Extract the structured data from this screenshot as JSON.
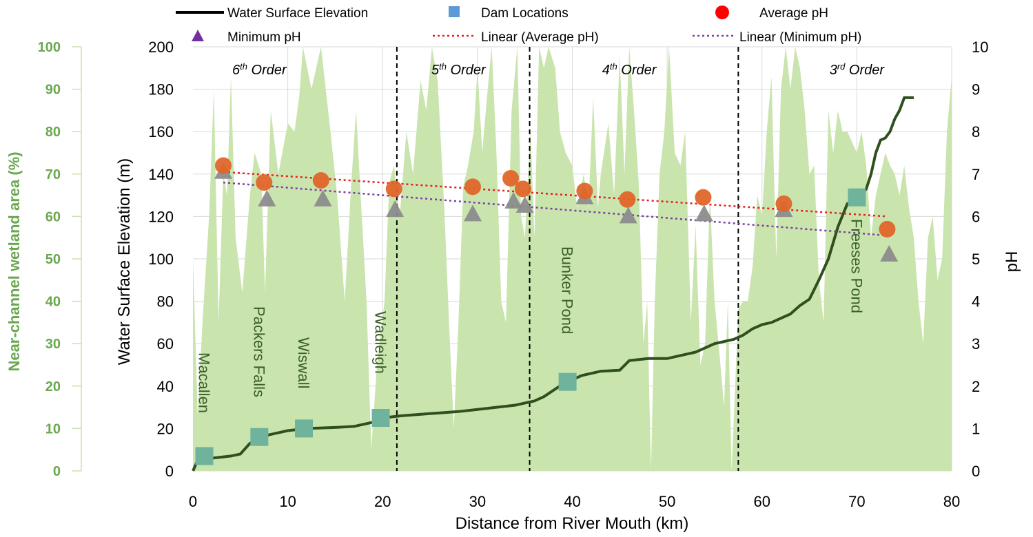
{
  "chart_data": {
    "type": "line",
    "xlabel": "Distance from River Mouth (km)",
    "ylabel_left": "Water Surface Elevation (m)",
    "ylabel_right": "pH",
    "ylabel_wetland": "Near-channel wetland area (%)",
    "xlim": [
      0,
      80
    ],
    "ylim_elevation": [
      0,
      200
    ],
    "ylim_ph": [
      0,
      10
    ],
    "ylim_wetland": [
      0,
      100
    ],
    "x_ticks": [
      "0",
      "10",
      "20",
      "30",
      "40",
      "50",
      "60",
      "70",
      "80"
    ],
    "elev_ticks": [
      "0",
      "20",
      "40",
      "60",
      "80",
      "100",
      "120",
      "140",
      "160",
      "180",
      "200"
    ],
    "ph_ticks": [
      "0",
      "1",
      "2",
      "3",
      "4",
      "5",
      "6",
      "7",
      "8",
      "9",
      "10"
    ],
    "wetland_ticks": [
      "0",
      "10",
      "20",
      "30",
      "40",
      "50",
      "60",
      "70",
      "80",
      "90",
      "100"
    ],
    "legend": {
      "water_surface": "Water Surface Elevation",
      "dams": "Dam Locations",
      "avg_ph": "Average pH",
      "min_ph": "Minimum pH",
      "lin_avg": "Linear (Average pH)",
      "lin_min": "Linear (Minimum pH)"
    },
    "orders": [
      {
        "base": "6",
        "sup": "th",
        "rest": " Order",
        "x": 7
      },
      {
        "base": "5",
        "sup": "th",
        "rest": " Order",
        "x": 28
      },
      {
        "base": "4",
        "sup": "th",
        "rest": " Order",
        "x": 46
      },
      {
        "base": "3",
        "sup": "rd",
        "rest": " Order",
        "x": 70
      }
    ],
    "order_boundaries_km": [
      21.5,
      35.5,
      57.5
    ],
    "water_surface": [
      [
        0,
        0
      ],
      [
        0.5,
        5
      ],
      [
        2,
        6
      ],
      [
        4,
        7
      ],
      [
        5,
        8
      ],
      [
        6,
        13
      ],
      [
        7,
        15
      ],
      [
        8,
        17
      ],
      [
        9,
        18
      ],
      [
        10,
        19
      ],
      [
        12,
        20
      ],
      [
        15,
        20.5
      ],
      [
        17,
        21
      ],
      [
        19,
        23
      ],
      [
        20,
        25
      ],
      [
        22,
        26
      ],
      [
        25,
        27
      ],
      [
        28,
        28
      ],
      [
        30,
        29
      ],
      [
        32,
        30
      ],
      [
        34,
        31
      ],
      [
        35,
        32
      ],
      [
        36,
        33
      ],
      [
        37,
        35
      ],
      [
        38,
        38
      ],
      [
        39,
        41
      ],
      [
        40,
        43
      ],
      [
        41,
        45
      ],
      [
        42,
        46
      ],
      [
        43,
        47
      ],
      [
        45,
        47.5
      ],
      [
        46,
        52
      ],
      [
        48,
        53
      ],
      [
        50,
        53
      ],
      [
        52,
        55
      ],
      [
        53,
        56
      ],
      [
        55,
        60
      ],
      [
        57,
        62
      ],
      [
        58,
        64
      ],
      [
        59,
        67
      ],
      [
        60,
        69
      ],
      [
        61,
        70
      ],
      [
        62,
        72
      ],
      [
        63,
        74
      ],
      [
        64,
        78
      ],
      [
        65,
        81
      ],
      [
        66,
        90
      ],
      [
        67,
        100
      ],
      [
        68,
        115
      ],
      [
        69,
        126
      ],
      [
        70,
        128
      ],
      [
        71,
        133
      ],
      [
        71.5,
        140
      ],
      [
        72,
        150
      ],
      [
        72.5,
        156
      ],
      [
        73,
        157
      ],
      [
        73.5,
        160
      ],
      [
        74,
        166
      ],
      [
        74.5,
        170
      ],
      [
        75,
        176
      ],
      [
        76,
        176
      ]
    ],
    "dams": [
      {
        "name": "Macallen",
        "x": 1.2,
        "elev": 7
      },
      {
        "name": "Packers Falls",
        "x": 7,
        "elev": 16
      },
      {
        "name": "Wiswall",
        "x": 11.7,
        "elev": 20
      },
      {
        "name": "Wadleigh",
        "x": 19.8,
        "elev": 25
      },
      {
        "name": "Bunker Pond",
        "x": 39.5,
        "elev": 42
      },
      {
        "name": "Freeses Pond",
        "x": 70,
        "elev": 129
      }
    ],
    "avg_ph": [
      [
        3.2,
        7.2
      ],
      [
        7.5,
        6.8
      ],
      [
        13.5,
        6.85
      ],
      [
        21.2,
        6.65
      ],
      [
        29.5,
        6.7
      ],
      [
        33.5,
        6.9
      ],
      [
        34.8,
        6.65
      ],
      [
        41.3,
        6.6
      ],
      [
        45.8,
        6.4
      ],
      [
        53.8,
        6.45
      ],
      [
        62.3,
        6.3
      ],
      [
        73.2,
        5.7
      ]
    ],
    "min_ph": [
      [
        3.2,
        7.05
      ],
      [
        7.8,
        6.4
      ],
      [
        13.7,
        6.4
      ],
      [
        21.3,
        6.15
      ],
      [
        29.5,
        6.05
      ],
      [
        33.8,
        6.35
      ],
      [
        35,
        6.25
      ],
      [
        41.3,
        6.45
      ],
      [
        45.9,
        6.0
      ],
      [
        53.9,
        6.05
      ],
      [
        62.3,
        6.15
      ],
      [
        73.4,
        5.1
      ]
    ],
    "lin_avg": [
      [
        3.2,
        7.05
      ],
      [
        73.2,
        6.0
      ]
    ],
    "lin_min": [
      [
        3.2,
        6.8
      ],
      [
        73.2,
        5.55
      ]
    ],
    "wetland": [
      [
        0,
        50
      ],
      [
        0.5,
        13
      ],
      [
        1,
        35
      ],
      [
        1.7,
        60
      ],
      [
        2.2,
        90
      ],
      [
        2.7,
        35
      ],
      [
        3.2,
        70
      ],
      [
        3.6,
        65
      ],
      [
        4,
        93
      ],
      [
        4.5,
        55
      ],
      [
        5.2,
        42
      ],
      [
        6,
        65
      ],
      [
        6.5,
        75
      ],
      [
        7.2,
        70
      ],
      [
        7.6,
        42
      ],
      [
        8.2,
        85
      ],
      [
        9,
        70
      ],
      [
        10,
        82
      ],
      [
        10.7,
        80
      ],
      [
        11.2,
        88
      ],
      [
        11.6,
        100
      ],
      [
        12.5,
        90
      ],
      [
        13.5,
        100
      ],
      [
        14.5,
        80
      ],
      [
        15.2,
        65
      ],
      [
        16,
        40
      ],
      [
        16.7,
        68
      ],
      [
        17.2,
        85
      ],
      [
        17.8,
        60
      ],
      [
        18.3,
        40
      ],
      [
        18.8,
        5
      ],
      [
        19.4,
        25
      ],
      [
        20.2,
        40
      ],
      [
        20.7,
        68
      ],
      [
        21.2,
        72
      ],
      [
        21.8,
        60
      ],
      [
        22.5,
        80
      ],
      [
        23.2,
        70
      ],
      [
        24,
        92
      ],
      [
        24.6,
        85
      ],
      [
        25.2,
        100
      ],
      [
        25.8,
        92
      ],
      [
        26.5,
        62
      ],
      [
        27,
        35
      ],
      [
        27.5,
        10
      ],
      [
        28,
        35
      ],
      [
        28.5,
        67
      ],
      [
        29,
        72
      ],
      [
        29.6,
        80
      ],
      [
        30,
        95
      ],
      [
        30.5,
        75
      ],
      [
        31,
        88
      ],
      [
        31.5,
        100
      ],
      [
        32,
        75
      ],
      [
        32.5,
        40
      ],
      [
        33,
        35
      ],
      [
        33.6,
        85
      ],
      [
        34.2,
        100
      ],
      [
        34.6,
        60
      ],
      [
        35,
        55
      ],
      [
        35.6,
        80
      ],
      [
        36,
        55
      ],
      [
        36.5,
        100
      ],
      [
        37,
        95
      ],
      [
        37.5,
        100
      ],
      [
        38.2,
        95
      ],
      [
        38.7,
        80
      ],
      [
        39.3,
        75
      ],
      [
        40,
        72
      ],
      [
        40.5,
        62
      ],
      [
        41.2,
        70
      ],
      [
        41.7,
        62
      ],
      [
        42.2,
        88
      ],
      [
        42.7,
        62
      ],
      [
        43,
        70
      ],
      [
        43.8,
        82
      ],
      [
        44.4,
        65
      ],
      [
        45,
        98
      ],
      [
        45.5,
        70
      ],
      [
        46,
        100
      ],
      [
        46.5,
        85
      ],
      [
        47,
        68
      ],
      [
        47.5,
        30
      ],
      [
        47.9,
        40
      ],
      [
        48.3,
        0
      ],
      [
        48.7,
        40
      ],
      [
        49.2,
        70
      ],
      [
        49.7,
        80
      ],
      [
        50.2,
        100
      ],
      [
        50.8,
        75
      ],
      [
        51.4,
        72
      ],
      [
        51.9,
        80
      ],
      [
        52.5,
        35
      ],
      [
        53,
        58
      ],
      [
        53.5,
        25
      ],
      [
        54,
        30
      ],
      [
        54.5,
        65
      ],
      [
        55,
        40
      ],
      [
        55.5,
        28
      ],
      [
        56,
        15
      ],
      [
        56.4,
        40
      ],
      [
        56.8,
        0
      ],
      [
        57.5,
        38
      ],
      [
        58,
        40
      ],
      [
        58.5,
        40
      ],
      [
        59,
        48
      ],
      [
        59.5,
        65
      ],
      [
        60,
        60
      ],
      [
        60.5,
        80
      ],
      [
        61,
        93
      ],
      [
        61.5,
        50
      ],
      [
        62,
        90
      ],
      [
        62.5,
        100
      ],
      [
        63,
        90
      ],
      [
        63.5,
        100
      ],
      [
        64,
        95
      ],
      [
        64.5,
        85
      ],
      [
        65,
        70
      ],
      [
        65.5,
        72
      ],
      [
        66,
        45
      ],
      [
        66.5,
        35
      ],
      [
        67,
        85
      ],
      [
        67.5,
        75
      ],
      [
        68,
        85
      ],
      [
        68.5,
        80
      ],
      [
        69,
        80
      ],
      [
        70,
        75
      ],
      [
        70.5,
        80
      ],
      [
        71,
        72
      ],
      [
        71.5,
        55
      ],
      [
        72,
        65
      ],
      [
        72.5,
        70
      ],
      [
        73,
        75
      ],
      [
        73.5,
        72
      ],
      [
        74,
        70
      ],
      [
        74.5,
        65
      ],
      [
        75,
        72
      ],
      [
        75.5,
        62
      ],
      [
        76,
        55
      ],
      [
        76.5,
        40
      ],
      [
        77,
        30
      ],
      [
        77.5,
        55
      ],
      [
        78,
        60
      ],
      [
        78.5,
        45
      ],
      [
        79,
        50
      ],
      [
        79.5,
        80
      ],
      [
        80,
        93
      ]
    ]
  }
}
